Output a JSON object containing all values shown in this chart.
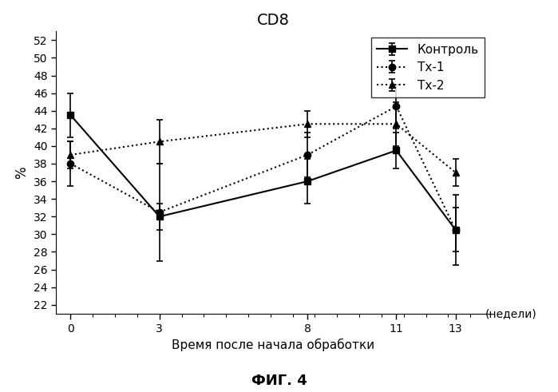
{
  "title": "CD8",
  "xlabel": "Время после начала обработки",
  "ylabel": "%",
  "fig_label": "ФИГ. 4",
  "x_label_suffix": "(недели)",
  "x": [
    0,
    3,
    8,
    11,
    13
  ],
  "kontrol": {
    "label": "Контроль",
    "y": [
      43.5,
      32.0,
      36.0,
      39.5,
      30.5
    ],
    "yerr": [
      2.5,
      1.5,
      2.5,
      2.0,
      2.5
    ],
    "marker": "s",
    "linestyle": "-",
    "color": "black"
  },
  "tx1": {
    "label": "Тх-1",
    "y": [
      38.0,
      32.5,
      39.0,
      44.5,
      30.5
    ],
    "yerr": [
      2.5,
      5.5,
      2.5,
      2.5,
      4.0
    ],
    "marker": "o",
    "linestyle": ":",
    "color": "black"
  },
  "tx2": {
    "label": "Тх-2",
    "y": [
      39.0,
      40.5,
      42.5,
      42.5,
      37.0
    ],
    "yerr": [
      1.5,
      2.5,
      1.5,
      2.5,
      1.5
    ],
    "marker": "^",
    "linestyle": ":",
    "color": "black"
  },
  "ylim": [
    21,
    53
  ],
  "yticks": [
    22,
    24,
    26,
    28,
    30,
    32,
    34,
    36,
    38,
    40,
    42,
    44,
    46,
    48,
    50,
    52
  ],
  "xticks": [
    0,
    3,
    8,
    11,
    13
  ],
  "xlim": [
    -0.5,
    14.2
  ],
  "background_color": "white",
  "title_fontsize": 14,
  "tick_fontsize": 10,
  "ylabel_fontsize": 12,
  "xlabel_fontsize": 11,
  "legend_fontsize": 11,
  "figlabel_fontsize": 13
}
